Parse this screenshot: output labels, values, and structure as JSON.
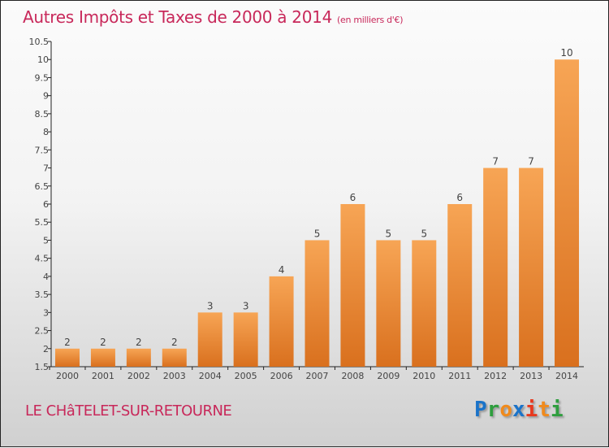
{
  "chart_data": {
    "type": "bar",
    "title": "Autres Impôts et Taxes de 2000 à 2014",
    "subtitle": "(en milliers d'€)",
    "categories": [
      "2000",
      "2001",
      "2002",
      "2003",
      "2004",
      "2005",
      "2006",
      "2007",
      "2008",
      "2009",
      "2010",
      "2011",
      "2012",
      "2013",
      "2014"
    ],
    "values": [
      2,
      2,
      2,
      2,
      3,
      3,
      4,
      5,
      6,
      5,
      5,
      6,
      7,
      7,
      10
    ],
    "ylim": [
      1.5,
      10.5
    ],
    "yticks": [
      1.5,
      2,
      2.5,
      3,
      3.5,
      4,
      4.5,
      5,
      5.5,
      6,
      6.5,
      7,
      7.5,
      8,
      8.5,
      9,
      9.5,
      10,
      10.5
    ],
    "xlabel": "",
    "ylabel": "",
    "bar_color_top": "#f7a555",
    "bar_color_bottom": "#d9701e"
  },
  "location": "LE CHâTELET-SUR-RETOURNE",
  "logo": {
    "letters": [
      "P",
      "r",
      "o",
      "x",
      "i",
      "t",
      "i"
    ],
    "colors": [
      "#1a73c9",
      "#2e9e3e",
      "#f08a1c",
      "#1a73c9",
      "#e8391e",
      "#f08a1c",
      "#2e9e3e"
    ]
  }
}
